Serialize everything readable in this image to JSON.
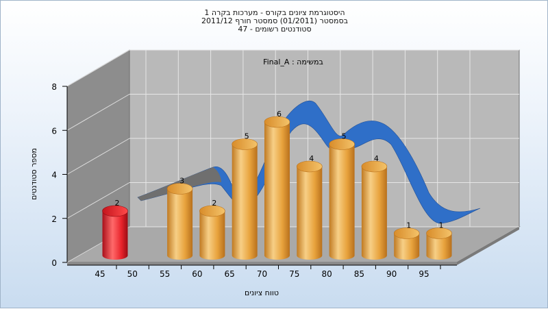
{
  "header": {
    "line1": "היסטוגרמת ציונים בקורס - מערכות בקרה 1",
    "line2": "בסמסטר  (01/2011)  סמסטר חורף 2011/12",
    "line3": "סטודנטים רשומים - 47"
  },
  "colors": {
    "bar": "#e8a33d",
    "bar_highlight": "#e8232b",
    "curve": "#2f6fc8",
    "wall_back": "#b9b9b9",
    "wall_side": "#8a8a8a",
    "floor": "#a7a7a7"
  },
  "chart_data": {
    "type": "bar",
    "title": "היסטוגרמת ציונים בקורס - מערכות בקרה 1",
    "subtitle": "Final_A : במשימה",
    "xlabel": "טווח ציונים",
    "ylabel": "מספר סטודנטים",
    "ylim": [
      0,
      8
    ],
    "yticks": [
      "0",
      "2",
      "4",
      "6",
      "8"
    ],
    "categories": [
      "45",
      "50",
      "55",
      "60",
      "65",
      "70",
      "75",
      "80",
      "85",
      "90",
      "95"
    ],
    "values": [
      2,
      null,
      3,
      2,
      5,
      6,
      4,
      5,
      4,
      1,
      1
    ],
    "highlight_categories": [
      "45"
    ],
    "grid": true,
    "three_d": true,
    "series": [
      {
        "values": [
          2,
          null,
          3,
          2,
          5,
          6,
          4,
          5,
          4,
          1,
          1
        ]
      }
    ],
    "overlay_curve": "normal-distribution ribbon"
  }
}
